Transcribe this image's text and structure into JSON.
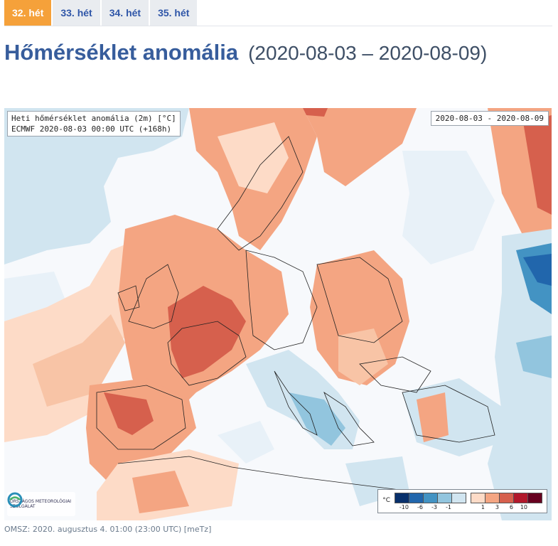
{
  "tabs": [
    {
      "label": "32. hét",
      "active": true
    },
    {
      "label": "33. hét",
      "active": false
    },
    {
      "label": "34. hét",
      "active": false
    },
    {
      "label": "35. hét",
      "active": false
    }
  ],
  "title": {
    "main": "Hőmérséklet anomália",
    "range": "(2020-08-03 – 2020-08-09)"
  },
  "map": {
    "info_line1": "Heti hőmérséklet anomália (2m) [°C]",
    "info_line2": "ECMWF 2020-08-03 00:00 UTC (+168h)",
    "date_range": "2020-08-03 - 2020-08-09",
    "logo_text": "ORSZÁGOS METEOROLÓGIAI SZOLGÁLAT",
    "legend": {
      "unit": "°C",
      "cold_colors": [
        "#08306b",
        "#2166ac",
        "#4393c3",
        "#92c5de",
        "#d1e5f0"
      ],
      "cold_ticks": [
        "-10",
        "-6",
        "-3",
        "-1"
      ],
      "warm_colors": [
        "#fddbc7",
        "#f4a582",
        "#d6604d",
        "#b2182b",
        "#67001f"
      ],
      "warm_ticks": [
        "1",
        "3",
        "6",
        "10"
      ]
    }
  },
  "footer": "OMSZ: 2020. augusztus 4. 01:00 (23:00 UTC) [meTz]"
}
